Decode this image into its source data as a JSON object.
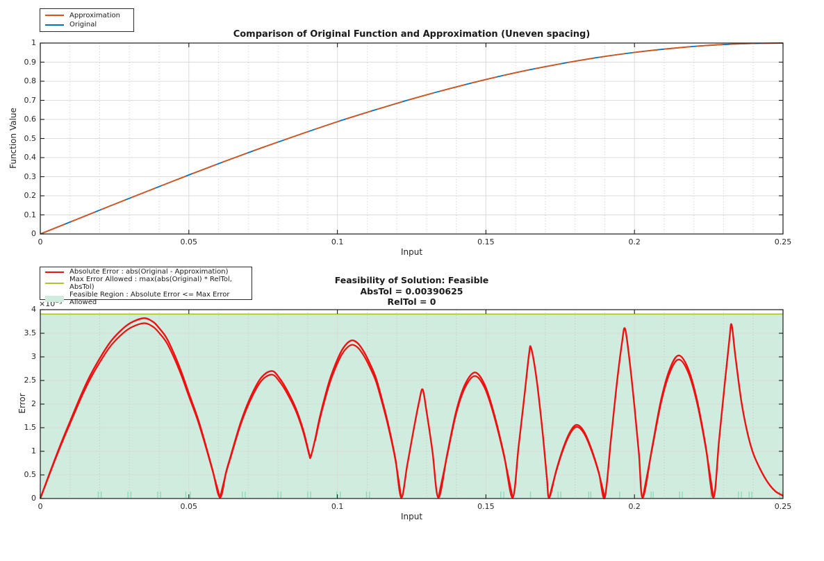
{
  "figure": {
    "background": "#ffffff",
    "colors": {
      "approximation": "#D95319",
      "original": "#0072BD",
      "absolute_error": "#ed1111",
      "max_error_allowed": "#aec430",
      "feasible_fill": "#cfecdf",
      "breakpoint_rug": "#8fd9ba"
    }
  },
  "chart_data": [
    {
      "type": "line",
      "title": "Comparison of Original Function and Approximation (Uneven spacing)",
      "xlabel": "Input",
      "ylabel": "Function Value",
      "xlim": [
        0,
        0.25
      ],
      "ylim": [
        0,
        1
      ],
      "xtick_values": [
        0,
        0.05,
        0.1,
        0.15,
        0.2,
        0.25
      ],
      "xtick_labels": [
        "0",
        "0.05",
        "0.1",
        "0.15",
        "0.2",
        "0.25"
      ],
      "ytick_values": [
        0,
        0.1,
        0.2,
        0.3,
        0.4,
        0.5,
        0.6,
        0.7,
        0.8,
        0.9,
        1
      ],
      "ytick_labels": [
        "0",
        "0.1",
        "0.2",
        "0.3",
        "0.4",
        "0.5",
        "0.6",
        "0.7",
        "0.8",
        "0.9",
        "1"
      ],
      "grid": true,
      "legend_position": "top-left-outside",
      "legend": [
        {
          "label": "Approximation",
          "swatch": "line",
          "color": "#D95319"
        },
        {
          "label": "Original",
          "swatch": "line",
          "color": "#0072BD"
        }
      ],
      "series": [
        {
          "name": "Original",
          "color": "#0072BD",
          "style": "solid",
          "points": [
            [
              0,
              0
            ],
            [
              0.0125,
              0.078
            ],
            [
              0.025,
              0.156
            ],
            [
              0.0375,
              0.233
            ],
            [
              0.05,
              0.309
            ],
            [
              0.0625,
              0.383
            ],
            [
              0.075,
              0.454
            ],
            [
              0.0875,
              0.522
            ],
            [
              0.1,
              0.588
            ],
            [
              0.1125,
              0.649
            ],
            [
              0.125,
              0.707
            ],
            [
              0.1375,
              0.76
            ],
            [
              0.15,
              0.809
            ],
            [
              0.1625,
              0.853
            ],
            [
              0.175,
              0.891
            ],
            [
              0.1875,
              0.924
            ],
            [
              0.2,
              0.951
            ],
            [
              0.2125,
              0.972
            ],
            [
              0.225,
              0.988
            ],
            [
              0.2375,
              0.997
            ],
            [
              0.25,
              1
            ]
          ]
        },
        {
          "name": "Approximation",
          "color": "#D95319",
          "style": "dashed-overlay",
          "points": [
            [
              0,
              0
            ],
            [
              0.0125,
              0.078
            ],
            [
              0.025,
              0.156
            ],
            [
              0.0375,
              0.233
            ],
            [
              0.05,
              0.309
            ],
            [
              0.0625,
              0.383
            ],
            [
              0.075,
              0.454
            ],
            [
              0.0875,
              0.522
            ],
            [
              0.1,
              0.588
            ],
            [
              0.1125,
              0.649
            ],
            [
              0.125,
              0.707
            ],
            [
              0.1375,
              0.76
            ],
            [
              0.15,
              0.809
            ],
            [
              0.1625,
              0.853
            ],
            [
              0.175,
              0.891
            ],
            [
              0.1875,
              0.924
            ],
            [
              0.2,
              0.951
            ],
            [
              0.2125,
              0.972
            ],
            [
              0.225,
              0.988
            ],
            [
              0.2375,
              0.997
            ],
            [
              0.25,
              1
            ]
          ]
        }
      ]
    },
    {
      "type": "line+area",
      "title_lines": [
        "Feasibility of Solution: Feasible",
        "AbsTol = 0.00390625",
        "RelTol = 0"
      ],
      "feasibility": "Feasible",
      "abs_tol": 0.00390625,
      "rel_tol": 0,
      "xlabel": "Input",
      "ylabel": "Error",
      "y_exponent_label": "×10⁻³",
      "y_units": "1e-3",
      "xlim": [
        0,
        0.25
      ],
      "ylim": [
        0,
        4
      ],
      "xtick_values": [
        0,
        0.05,
        0.1,
        0.15,
        0.2,
        0.25
      ],
      "xtick_labels": [
        "0",
        "0.05",
        "0.1",
        "0.15",
        "0.2",
        "0.25"
      ],
      "ytick_values": [
        0,
        0.5,
        1,
        1.5,
        2,
        2.5,
        3,
        3.5,
        4
      ],
      "ytick_labels": [
        "0",
        "0.5",
        "1",
        "1.5",
        "2",
        "2.5",
        "3",
        "3.5",
        "4"
      ],
      "grid": true,
      "max_error_allowed": 3.90625,
      "legend": [
        {
          "label": "Absolute Error : abs(Original - Approximation)",
          "swatch": "line",
          "color": "#ed1111"
        },
        {
          "label": "Max Error Allowed : max(abs(Original) * RelTol, AbsTol)",
          "swatch": "line",
          "color": "#aec430"
        },
        {
          "label": "Feasible Region : Absolute Error <= Max Error Allowed",
          "swatch": "patch",
          "color": "#cfecdf"
        }
      ],
      "error_curve": {
        "name": "Absolute Error",
        "color": "#ed1111",
        "points": [
          [
            0,
            0
          ],
          [
            0.004,
            0.68
          ],
          [
            0.007,
            1.17
          ],
          [
            0.01,
            1.63
          ],
          [
            0.014,
            2.23
          ],
          [
            0.017,
            2.63
          ],
          [
            0.021,
            3.07
          ],
          [
            0.024,
            3.35
          ],
          [
            0.028,
            3.61
          ],
          [
            0.031,
            3.74
          ],
          [
            0.035,
            3.82
          ],
          [
            0.038,
            3.74
          ],
          [
            0.04,
            3.61
          ],
          [
            0.0425,
            3.4
          ],
          [
            0.045,
            3.07
          ],
          [
            0.0475,
            2.68
          ],
          [
            0.05,
            2.23
          ],
          [
            0.053,
            1.7
          ],
          [
            0.0555,
            1.17
          ],
          [
            0.058,
            0.6
          ],
          [
            0.0605,
            0.02
          ],
          [
            0.0625,
            0.55
          ],
          [
            0.064,
            0.88
          ],
          [
            0.0675,
            1.62
          ],
          [
            0.071,
            2.18
          ],
          [
            0.0745,
            2.57
          ],
          [
            0.078,
            2.7
          ],
          [
            0.0805,
            2.55
          ],
          [
            0.083,
            2.3
          ],
          [
            0.086,
            1.91
          ],
          [
            0.0885,
            1.45
          ],
          [
            0.0905,
            0.95
          ],
          [
            0.091,
            0.88
          ],
          [
            0.0925,
            1.25
          ],
          [
            0.094,
            1.7
          ],
          [
            0.096,
            2.2
          ],
          [
            0.098,
            2.62
          ],
          [
            0.101,
            3.08
          ],
          [
            0.103,
            3.27
          ],
          [
            0.105,
            3.35
          ],
          [
            0.107,
            3.28
          ],
          [
            0.109,
            3.1
          ],
          [
            0.111,
            2.85
          ],
          [
            0.113,
            2.55
          ],
          [
            0.115,
            2.1
          ],
          [
            0.117,
            1.6
          ],
          [
            0.1195,
            0.85
          ],
          [
            0.1215,
            0.02
          ],
          [
            0.1235,
            0.7
          ],
          [
            0.1255,
            1.4
          ],
          [
            0.1275,
            2.05
          ],
          [
            0.1287,
            2.31
          ],
          [
            0.13,
            1.85
          ],
          [
            0.132,
            1.0
          ],
          [
            0.134,
            0.02
          ],
          [
            0.137,
            0.95
          ],
          [
            0.14,
            1.85
          ],
          [
            0.143,
            2.42
          ],
          [
            0.1463,
            2.67
          ],
          [
            0.1495,
            2.42
          ],
          [
            0.1525,
            1.85
          ],
          [
            0.156,
            0.95
          ],
          [
            0.159,
            0.02
          ],
          [
            0.161,
            1.1
          ],
          [
            0.163,
            2.2
          ],
          [
            0.1645,
            3.05
          ],
          [
            0.1652,
            3.19
          ],
          [
            0.167,
            2.55
          ],
          [
            0.169,
            1.45
          ],
          [
            0.1705,
            0.45
          ],
          [
            0.1713,
            0.02
          ],
          [
            0.1737,
            0.6
          ],
          [
            0.1762,
            1.1
          ],
          [
            0.1785,
            1.43
          ],
          [
            0.1806,
            1.56
          ],
          [
            0.183,
            1.42
          ],
          [
            0.1855,
            1.05
          ],
          [
            0.188,
            0.55
          ],
          [
            0.19,
            0.02
          ],
          [
            0.192,
            1.2
          ],
          [
            0.194,
            2.4
          ],
          [
            0.1958,
            3.3
          ],
          [
            0.1968,
            3.6
          ],
          [
            0.1982,
            3.0
          ],
          [
            0.2,
            1.95
          ],
          [
            0.2015,
            0.95
          ],
          [
            0.2028,
            0.02
          ],
          [
            0.206,
            1.1
          ],
          [
            0.209,
            2.1
          ],
          [
            0.212,
            2.76
          ],
          [
            0.2149,
            3.03
          ],
          [
            0.218,
            2.76
          ],
          [
            0.221,
            2.1
          ],
          [
            0.224,
            1.1
          ],
          [
            0.2266,
            0.02
          ],
          [
            0.2285,
            1.25
          ],
          [
            0.2305,
            2.5
          ],
          [
            0.232,
            3.4
          ],
          [
            0.2327,
            3.68
          ],
          [
            0.234,
            3.0
          ],
          [
            0.236,
            2.05
          ],
          [
            0.238,
            1.4
          ],
          [
            0.24,
            0.95
          ],
          [
            0.2425,
            0.6
          ],
          [
            0.245,
            0.33
          ],
          [
            0.2475,
            0.15
          ],
          [
            0.25,
            0.06
          ]
        ],
        "band_ranges": [
          [
            0,
            0.0605
          ],
          [
            0.0605,
            0.0915
          ],
          [
            0.0915,
            0.1215
          ],
          [
            0.134,
            0.159
          ],
          [
            0.1713,
            0.19
          ],
          [
            0.2028,
            0.2266
          ]
        ]
      },
      "breakpoint_rug": {
        "color": "#8fd9ba",
        "x": [
          0.0195,
          0.0205,
          0.0295,
          0.0305,
          0.0395,
          0.0405,
          0.049,
          0.0505,
          0.068,
          0.069,
          0.08,
          0.081,
          0.09,
          0.091,
          0.0998,
          0.101,
          0.1098,
          0.1108,
          0.1337,
          0.1345,
          0.155,
          0.156,
          0.165,
          0.1743,
          0.1752,
          0.1846,
          0.1853,
          0.195,
          0.2056,
          0.2063,
          0.2152,
          0.2161,
          0.2257,
          0.2266,
          0.235,
          0.236,
          0.2386,
          0.2395,
          0.2489,
          0.2497
        ]
      }
    }
  ]
}
